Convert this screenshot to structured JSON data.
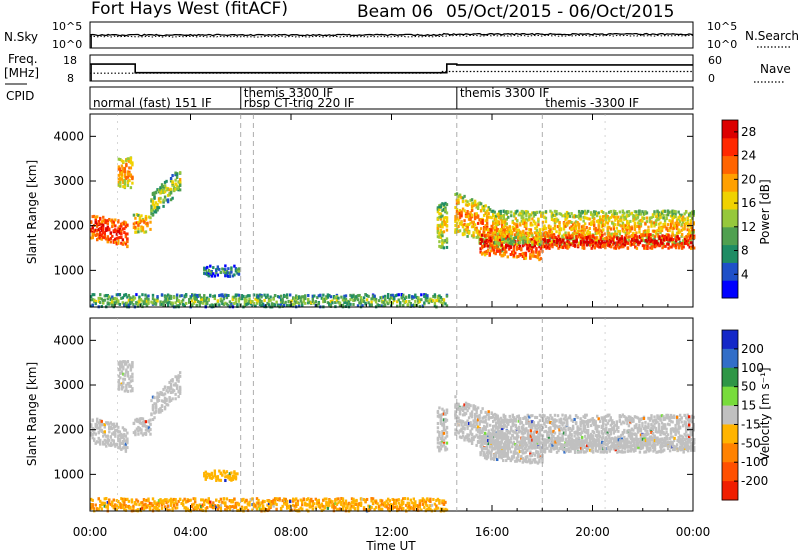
{
  "header": {
    "radar": "Fort Hays West (fitACF)",
    "beam": "Beam 06",
    "dates": "05/Oct/2015 - 06/Oct/2015"
  },
  "noise_panel": {
    "left_label": "N.Sky",
    "left_ticks": [
      "10^5",
      "10^0"
    ],
    "right_label": "N.Search",
    "right_ticks": [
      "10^5",
      "10^0"
    ]
  },
  "freq_panel": {
    "left_label_1": "Freq.",
    "left_label_2": "[MHz]",
    "left_ticks": [
      "18",
      "8"
    ],
    "right_label": "Nave",
    "right_ticks": [
      "60",
      "0"
    ]
  },
  "cpid_panel": {
    "label": "CPID",
    "entries": [
      {
        "text": "normal (fast) 151 IF",
        "start_hour": 0.0,
        "row": 1
      },
      {
        "text": "themis 3300 IF",
        "start_hour": 6.0,
        "row": 0
      },
      {
        "text": "rbsp CT-trig 220 IF",
        "start_hour": 6.0,
        "row": 1
      },
      {
        "text": "themis 3300 IF",
        "start_hour": 14.6,
        "row": 0
      },
      {
        "text": "themis -3300 IF",
        "start_hour": 18.0,
        "row": 1
      }
    ],
    "boundaries_hours": [
      6.0,
      6.5,
      14.6,
      18.0
    ]
  },
  "power_colorbar": {
    "label": "Power [dB]",
    "ticks": [
      "28",
      "24",
      "20",
      "16",
      "12",
      "8",
      "4"
    ],
    "colors": [
      "#0000ff",
      "#1e50c8",
      "#1e8c64",
      "#50a050",
      "#96c83c",
      "#f0d200",
      "#ffa000",
      "#ff6400",
      "#ff2800",
      "#dc0000"
    ]
  },
  "velocity_colorbar": {
    "label": "Velocity [m s⁻¹]",
    "ticks": [
      "200",
      "100",
      "50",
      "15",
      "-15",
      "-50",
      "-100",
      "-200"
    ],
    "colors": [
      "#1428c8",
      "#326ec8",
      "#2e9646",
      "#78dc3c",
      "#c0c0c0",
      "#ffb400",
      "#ff8200",
      "#ff5000",
      "#f01e00"
    ]
  },
  "x_axis": {
    "label": "Time UT",
    "ticks": [
      "00:00",
      "04:00",
      "08:00",
      "12:00",
      "16:00",
      "20:00",
      "00:00"
    ]
  },
  "chart_data": {
    "type": "heatmap",
    "title": "Fort Hays West (fitACF)  Beam 06  05/Oct/2015 - 06/Oct/2015",
    "xlabel": "Time UT",
    "ylabel": "Slant Range [km]",
    "xlim_hours": [
      0,
      24
    ],
    "ylim_km": [
      180,
      4500
    ],
    "y_ticks": [
      "1000",
      "2000",
      "3000",
      "4000"
    ],
    "panels": [
      {
        "quantity": "Power",
        "units": "dB",
        "color_range": [
          0,
          30
        ],
        "scatter_regions": [
          {
            "t_start": 0.0,
            "t_end": 1.5,
            "range_center_km": 2000,
            "range_halfwidth_km": 280,
            "center_slope_km_per_h": -150,
            "typical_power_db": 24
          },
          {
            "t_start": 1.1,
            "t_end": 1.65,
            "range_center_km": 3200,
            "range_halfwidth_km": 350,
            "center_slope_km_per_h": 0,
            "typical_power_db": 18
          },
          {
            "t_start": 1.7,
            "t_end": 2.4,
            "range_center_km": 2050,
            "range_halfwidth_km": 200,
            "center_slope_km_per_h": 0,
            "typical_power_db": 18
          },
          {
            "t_start": 2.4,
            "t_end": 3.6,
            "range_center_km": 2450,
            "range_halfwidth_km": 260,
            "center_slope_km_per_h": 500,
            "typical_power_db": 12
          },
          {
            "t_start": 4.5,
            "t_end": 5.9,
            "range_center_km": 980,
            "range_halfwidth_km": 120,
            "center_slope_km_per_h": 0,
            "typical_power_db": 6
          },
          {
            "t_start": 0.0,
            "t_end": 14.2,
            "range_center_km": 320,
            "range_halfwidth_km": 140,
            "center_slope_km_per_h": 0,
            "typical_power_db": 10
          },
          {
            "t_start": 13.8,
            "t_end": 14.2,
            "range_center_km": 2000,
            "range_halfwidth_km": 500,
            "center_slope_km_per_h": 0,
            "typical_power_db": 14
          },
          {
            "t_start": 14.5,
            "t_end": 16.5,
            "range_center_km": 2300,
            "range_halfwidth_km": 450,
            "center_slope_km_per_h": -250,
            "typical_power_db": 18
          },
          {
            "t_start": 15.5,
            "t_end": 18.0,
            "range_center_km": 1650,
            "range_halfwidth_km": 300,
            "center_slope_km_per_h": -50,
            "typical_power_db": 24
          },
          {
            "t_start": 16.0,
            "t_end": 24.0,
            "range_center_km": 1950,
            "range_halfwidth_km": 380,
            "center_slope_km_per_h": 0,
            "typical_power_db": 16
          },
          {
            "t_start": 18.0,
            "t_end": 24.0,
            "range_center_km": 1650,
            "range_halfwidth_km": 160,
            "center_slope_km_per_h": 0,
            "typical_power_db": 26
          }
        ]
      },
      {
        "quantity": "Velocity",
        "units": "m s^-1",
        "color_range": [
          -200,
          200
        ],
        "scatter_regions": [
          {
            "t_start": 0.0,
            "t_end": 1.5,
            "range_center_km": 2000,
            "range_halfwidth_km": 280,
            "center_slope_km_per_h": -150,
            "typical_velocity": 0
          },
          {
            "t_start": 1.1,
            "t_end": 1.65,
            "range_center_km": 3200,
            "range_halfwidth_km": 350,
            "center_slope_km_per_h": 0,
            "typical_velocity": 0
          },
          {
            "t_start": 1.7,
            "t_end": 2.4,
            "range_center_km": 2050,
            "range_halfwidth_km": 200,
            "center_slope_km_per_h": 0,
            "typical_velocity": 0
          },
          {
            "t_start": 2.4,
            "t_end": 3.6,
            "range_center_km": 2450,
            "range_halfwidth_km": 260,
            "center_slope_km_per_h": 500,
            "typical_velocity": 0
          },
          {
            "t_start": 4.5,
            "t_end": 5.9,
            "range_center_km": 980,
            "range_halfwidth_km": 120,
            "center_slope_km_per_h": 0,
            "typical_velocity": -40
          },
          {
            "t_start": 0.0,
            "t_end": 14.2,
            "range_center_km": 320,
            "range_halfwidth_km": 140,
            "center_slope_km_per_h": 0,
            "typical_velocity": -60
          },
          {
            "t_start": 13.8,
            "t_end": 14.2,
            "range_center_km": 2000,
            "range_halfwidth_km": 500,
            "center_slope_km_per_h": 0,
            "typical_velocity": 0
          },
          {
            "t_start": 14.5,
            "t_end": 16.5,
            "range_center_km": 2300,
            "range_halfwidth_km": 450,
            "center_slope_km_per_h": -250,
            "typical_velocity": 0
          },
          {
            "t_start": 15.5,
            "t_end": 18.0,
            "range_center_km": 1650,
            "range_halfwidth_km": 300,
            "center_slope_km_per_h": -50,
            "typical_velocity": 0
          },
          {
            "t_start": 16.0,
            "t_end": 24.0,
            "range_center_km": 1950,
            "range_halfwidth_km": 380,
            "center_slope_km_per_h": 0,
            "typical_velocity": 0
          },
          {
            "t_start": 18.0,
            "t_end": 24.0,
            "range_center_km": 1650,
            "range_halfwidth_km": 160,
            "center_slope_km_per_h": 0,
            "typical_velocity": 0
          }
        ]
      }
    ],
    "noise_series": {
      "sky_level_log10": 2.5,
      "search_level_log10": 2.2
    },
    "frequency_series": [
      {
        "t_start": 0.0,
        "t_end": 1.8,
        "freq_mhz": 14.5
      },
      {
        "t_start": 1.8,
        "t_end": 14.2,
        "freq_mhz": 11.2
      },
      {
        "t_start": 14.2,
        "t_end": 14.6,
        "freq_mhz": 14.5
      },
      {
        "t_start": 14.6,
        "t_end": 24.0,
        "freq_mhz": 14.2
      }
    ],
    "nave_series": [
      {
        "t_start": 0.0,
        "t_end": 14.0,
        "nave": 18
      },
      {
        "t_start": 14.0,
        "t_end": 24.0,
        "nave": 22
      }
    ]
  }
}
